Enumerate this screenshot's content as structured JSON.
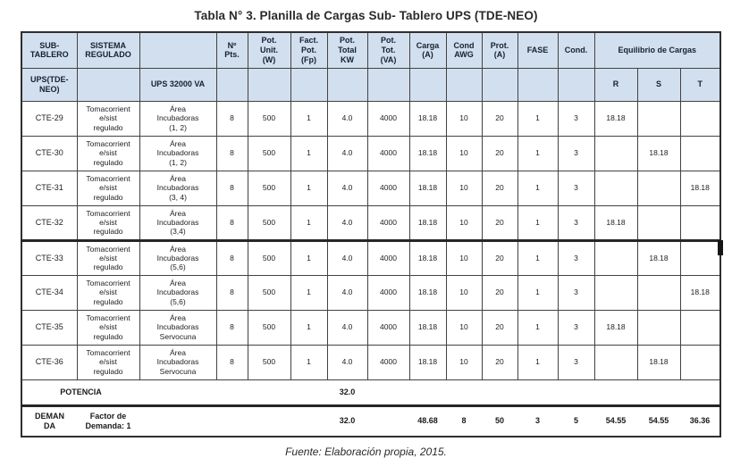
{
  "title": "Tabla N° 3. Planilla de Cargas Sub- Tablero UPS (TDE-NEO)",
  "source_note": "Fuente: Elaboración propia, 2015.",
  "colors": {
    "header_bg": "#d2dfee",
    "border": "#424242",
    "text": "#1e1e1e"
  },
  "table": {
    "header": {
      "sub_tablero": "SUB-\nTABLERO",
      "sistema_regulado": "SISTEMA\nREGULADO",
      "col3": "",
      "n_pts": "Nº\nPts.",
      "pot_unit": "Pot.\nUnit.\n(W)",
      "fact_pot": "Fact.\nPot.\n(Fp)",
      "pot_total_kw": "Pot.\nTotal\nKW",
      "pot_tot_va": "Pot.\nTot.\n(VA)",
      "carga": "Carga\n(A)",
      "cond_awg": "Cond\nAWG",
      "prot": "Prot.\n(A)",
      "fase": "FASE",
      "cond": "Cond.",
      "equilibrio": "Equilibrio de Cargas"
    },
    "subheader": {
      "ups_tde_neo": "UPS(TDE-\nNEO)",
      "ups_va": "UPS 32000 VA",
      "r": "R",
      "s": "S",
      "t": "T"
    },
    "rows": [
      {
        "id": "CTE-29",
        "sistema": "Tomacorrient\ne/sist\nregulado",
        "area": "Área\nIncubadoras\n(1, 2)",
        "pts": "8",
        "pot_unit": "500",
        "fp": "1",
        "kw": "4.0",
        "va": "4000",
        "carga": "18.18",
        "awg": "10",
        "prot": "20",
        "fase": "1",
        "cond": "3",
        "r": "18.18",
        "s": "",
        "t": ""
      },
      {
        "id": "CTE-30",
        "sistema": "Tomacorrient\ne/sist\nregulado",
        "area": "Área\nIncubadoras\n(1, 2)",
        "pts": "8",
        "pot_unit": "500",
        "fp": "1",
        "kw": "4.0",
        "va": "4000",
        "carga": "18.18",
        "awg": "10",
        "prot": "20",
        "fase": "1",
        "cond": "3",
        "r": "",
        "s": "18.18",
        "t": ""
      },
      {
        "id": "CTE-31",
        "sistema": "Tomacorrient\ne/sist\nregulado",
        "area": "Área\nIncubadoras\n(3, 4)",
        "pts": "8",
        "pot_unit": "500",
        "fp": "1",
        "kw": "4.0",
        "va": "4000",
        "carga": "18.18",
        "awg": "10",
        "prot": "20",
        "fase": "1",
        "cond": "3",
        "r": "",
        "s": "",
        "t": "18.18"
      },
      {
        "id": "CTE-32",
        "sistema": "Tomacorrient\ne/sist\nregulado",
        "area": "Área\nIncubadoras\n(3,4)",
        "pts": "8",
        "pot_unit": "500",
        "fp": "1",
        "kw": "4.0",
        "va": "4000",
        "carga": "18.18",
        "awg": "10",
        "prot": "20",
        "fase": "1",
        "cond": "3",
        "r": "18.18",
        "s": "",
        "t": ""
      },
      {
        "id": "CTE-33",
        "sistema": "Tomacorrient\ne/sist\nregulado",
        "area": "Área\nIncubadoras\n(5,6)",
        "pts": "8",
        "pot_unit": "500",
        "fp": "1",
        "kw": "4.0",
        "va": "4000",
        "carga": "18.18",
        "awg": "10",
        "prot": "20",
        "fase": "1",
        "cond": "3",
        "r": "",
        "s": "18.18",
        "t": ""
      },
      {
        "id": "CTE-34",
        "sistema": "Tomacorrient\ne/sist\nregulado",
        "area": "Área\nIncubadoras\n(5,6)",
        "pts": "8",
        "pot_unit": "500",
        "fp": "1",
        "kw": "4.0",
        "va": "4000",
        "carga": "18.18",
        "awg": "10",
        "prot": "20",
        "fase": "1",
        "cond": "3",
        "r": "",
        "s": "",
        "t": "18.18"
      },
      {
        "id": "CTE-35",
        "sistema": "Tomacorrient\ne/sist\nregulado",
        "area": "Área\nIncubadoras\nServocuna",
        "pts": "8",
        "pot_unit": "500",
        "fp": "1",
        "kw": "4.0",
        "va": "4000",
        "carga": "18.18",
        "awg": "10",
        "prot": "20",
        "fase": "1",
        "cond": "3",
        "r": "18.18",
        "s": "",
        "t": ""
      },
      {
        "id": "CTE-36",
        "sistema": "Tomacorrient\ne/sist\nregulado",
        "area": "Área\nIncubadoras\nServocuna",
        "pts": "8",
        "pot_unit": "500",
        "fp": "1",
        "kw": "4.0",
        "va": "4000",
        "carga": "18.18",
        "awg": "10",
        "prot": "20",
        "fase": "1",
        "cond": "3",
        "r": "",
        "s": "18.18",
        "t": ""
      }
    ],
    "potencia": {
      "label": "POTENCIA",
      "kw": "32.0"
    },
    "demanda": {
      "label": "DEMAN\nDA",
      "factor": "Factor de\nDemanda: 1",
      "kw": "32.0",
      "carga": "48.68",
      "awg": "8",
      "prot": "50",
      "fase": "3",
      "cond": "5",
      "r": "54.55",
      "s": "54.55",
      "t": "36.36"
    }
  }
}
